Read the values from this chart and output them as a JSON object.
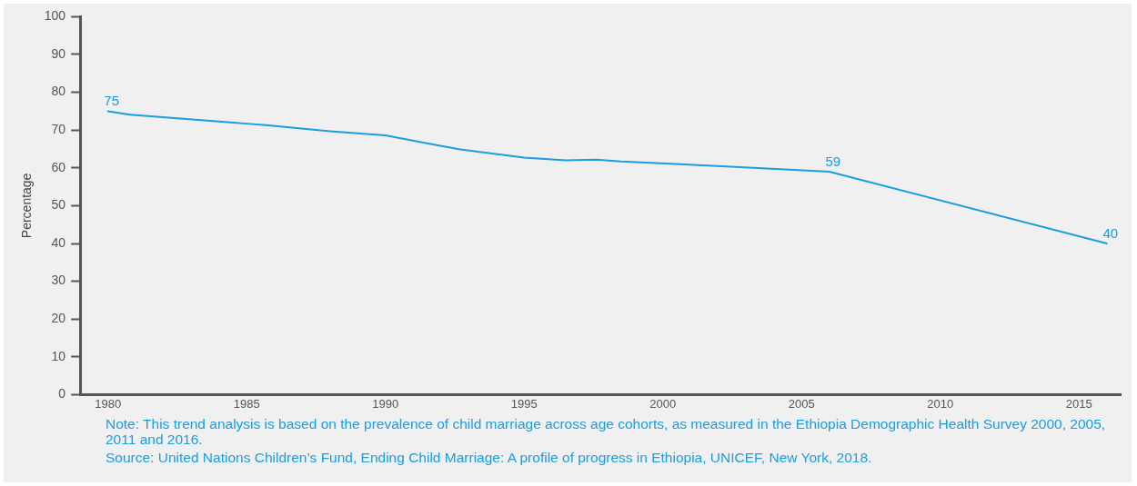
{
  "chart_data": {
    "type": "line",
    "ylabel": "Percentage",
    "x": [
      1980,
      1980.8,
      1984,
      1985,
      1985.7,
      1988,
      1990,
      1991.5,
      1992.7,
      1995,
      1996.5,
      1997.6,
      1998.5,
      2002.3,
      2006,
      2016
    ],
    "series": [
      {
        "color": "#1a9ee0",
        "values": [
          75,
          74.1,
          72.3,
          71.7,
          71.3,
          69.7,
          68.6,
          66.5,
          64.9,
          62.7,
          62,
          62.2,
          61.7,
          60.4,
          59,
          40
        ]
      }
    ],
    "xlim": [
      1979,
      2016.5
    ],
    "xticks": [
      1980,
      1985,
      1990,
      1995,
      2000,
      2005,
      2010,
      2015
    ],
    "ylim": [
      0,
      100
    ],
    "yticks": [
      0,
      10,
      20,
      30,
      40,
      50,
      60,
      70,
      80,
      90,
      100
    ],
    "grid": false,
    "legend": false,
    "marker": "none",
    "line_style": "solid",
    "annotations": [
      {
        "text": "75",
        "x": 1980,
        "y": 75
      },
      {
        "text": "59",
        "x": 2006,
        "y": 59
      },
      {
        "text": "40",
        "x": 2016,
        "y": 40
      },
      "Note: This trend analysis is based on the prevalence of child marriage across age cohorts, as measured in the Ethiopia Demographic Health Survey 2000, 2005, 2011 and 2016.",
      "Source: United Nations Children’s Fund, Ending Child Marriage: A profile of progress in Ethiopia, UNICEF, New York, 2018."
    ]
  }
}
